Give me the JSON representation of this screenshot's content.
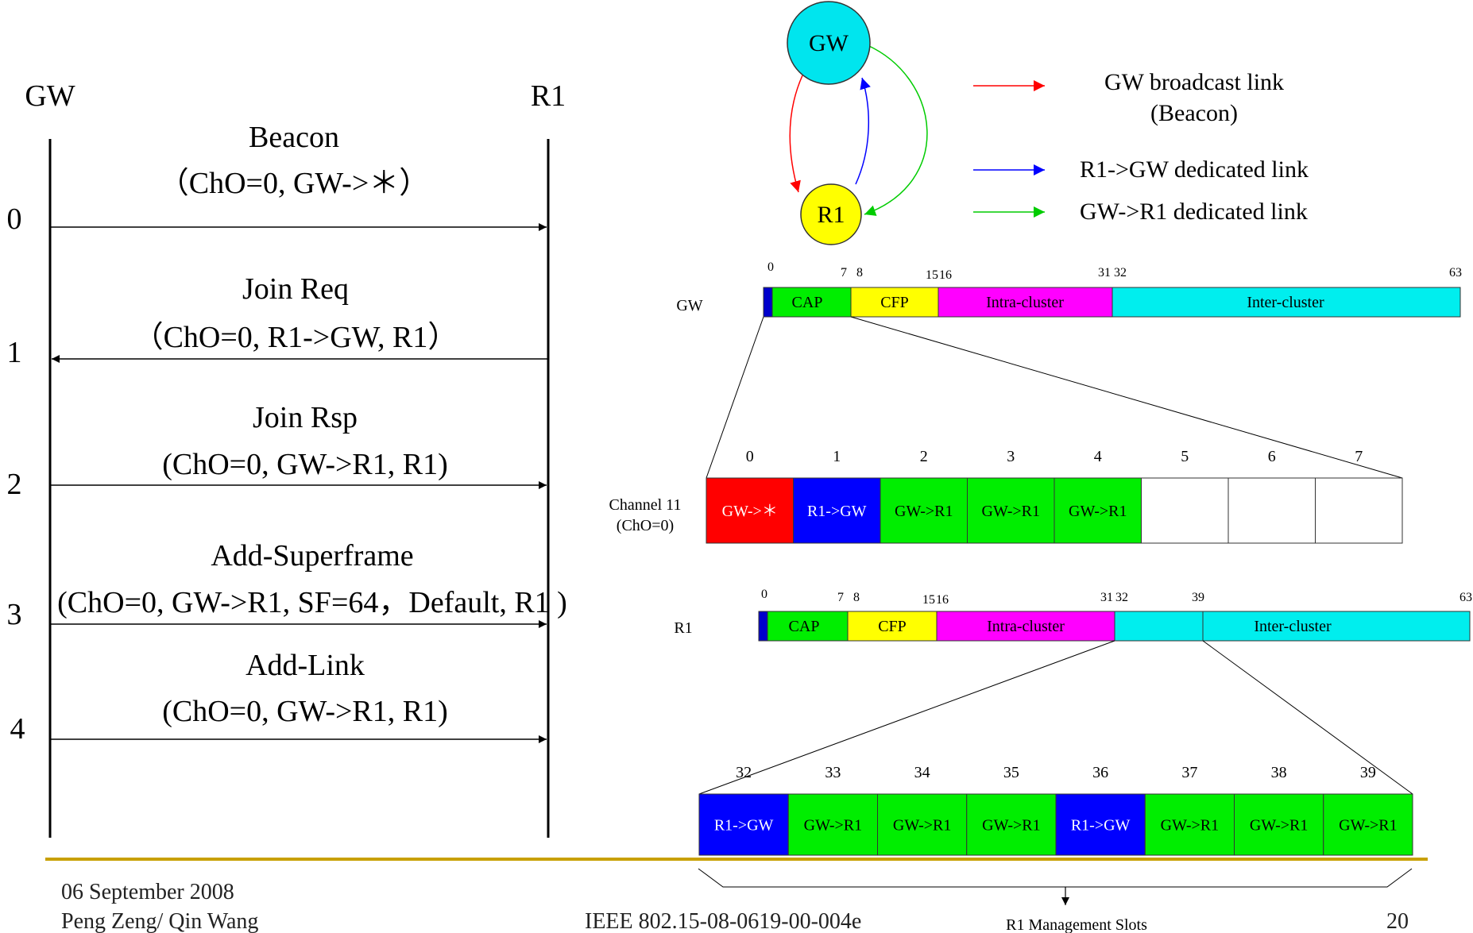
{
  "sequence": {
    "left_label": "GW",
    "right_label": "R1",
    "steps": [
      "0",
      "1",
      "2",
      "3",
      "4"
    ],
    "messages": [
      {
        "title": "Beacon",
        "detail": "（ChO=0, GW->＊）",
        "direction": "right"
      },
      {
        "title": "Join Req",
        "detail": "（ChO=0, R1->GW, R1）",
        "direction": "left"
      },
      {
        "title": "Join Rsp",
        "detail": "(ChO=0, GW->R1, R1)",
        "direction": "right"
      },
      {
        "title": "Add-Superframe",
        "detail": "(ChO=0, GW->R1, SF=64，Default, R1 )",
        "direction": "right"
      },
      {
        "title": "Add-Link",
        "detail": "(ChO=0, GW->R1, R1)",
        "direction": "right"
      }
    ]
  },
  "graph": {
    "gw_label": "GW",
    "r1_label": "R1",
    "gw_color": "#00e5ee",
    "r1_color": "#ffff00"
  },
  "legend": {
    "broadcast_title": "GW broadcast link",
    "broadcast_sub": "(Beacon)",
    "r1_gw": "R1->GW dedicated link",
    "gw_r1": "GW->R1 dedicated link",
    "colors": {
      "broadcast": "#ff0000",
      "r1_gw": "#0000ff",
      "gw_r1": "#00cc00"
    }
  },
  "gw_superframe": {
    "row_label": "GW",
    "ticks": [
      "0",
      "7",
      "8",
      "15",
      "16",
      "31",
      "32",
      "63"
    ],
    "segments": [
      {
        "label": "",
        "color": "#0000cc"
      },
      {
        "label": "CAP",
        "color": "#00ee00"
      },
      {
        "label": "CFP",
        "color": "#ffff00"
      },
      {
        "label": "Intra-cluster",
        "color": "#ff00ff"
      },
      {
        "label": "Inter-cluster",
        "color": "#00eeee"
      }
    ]
  },
  "channel_slots": {
    "channel_label": "Channel 11",
    "channel_sub": "(ChO=0)",
    "numbers": [
      "0",
      "1",
      "2",
      "3",
      "4",
      "5",
      "6",
      "7"
    ],
    "slots": [
      {
        "label": "GW->＊",
        "color": "#ff0000"
      },
      {
        "label": "R1->GW",
        "color": "#0000ff"
      },
      {
        "label": "GW->R1",
        "color": "#00ee00"
      },
      {
        "label": "GW->R1",
        "color": "#00ee00"
      },
      {
        "label": "GW->R1",
        "color": "#00ee00"
      },
      {
        "label": "",
        "color": "#ffffff"
      },
      {
        "label": "",
        "color": "#ffffff"
      },
      {
        "label": "",
        "color": "#ffffff"
      }
    ]
  },
  "r1_superframe": {
    "row_label": "R1",
    "ticks": [
      "0",
      "7",
      "8",
      "15",
      "16",
      "31",
      "32",
      "39",
      "63"
    ],
    "segments": [
      {
        "label": "",
        "color": "#0000cc"
      },
      {
        "label": "CAP",
        "color": "#00ee00"
      },
      {
        "label": "CFP",
        "color": "#ffff00"
      },
      {
        "label": "Intra-cluster",
        "color": "#ff00ff"
      },
      {
        "label": "",
        "color": "#00eeee"
      },
      {
        "label": "Inter-cluster",
        "color": "#00eeee"
      }
    ]
  },
  "mgmt_slots": {
    "numbers": [
      "32",
      "33",
      "34",
      "35",
      "36",
      "37",
      "38",
      "39"
    ],
    "slots": [
      {
        "label": "R1->GW",
        "color": "#0000ff"
      },
      {
        "label": "GW->R1",
        "color": "#00ee00"
      },
      {
        "label": "GW->R1",
        "color": "#00ee00"
      },
      {
        "label": "GW->R1",
        "color": "#00ee00"
      },
      {
        "label": "R1->GW",
        "color": "#0000ff"
      },
      {
        "label": "GW->R1",
        "color": "#00ee00"
      },
      {
        "label": "GW->R1",
        "color": "#00ee00"
      },
      {
        "label": "GW->R1",
        "color": "#00ee00"
      }
    ],
    "caption": "R1 Management Slots"
  },
  "footer": {
    "date": "06 September 2008",
    "authors": "Peng Zeng/ Qin Wang",
    "doc_id": "IEEE 802.15-08-0619-00-004e",
    "page": "20",
    "rule_color": "#c8a000"
  }
}
